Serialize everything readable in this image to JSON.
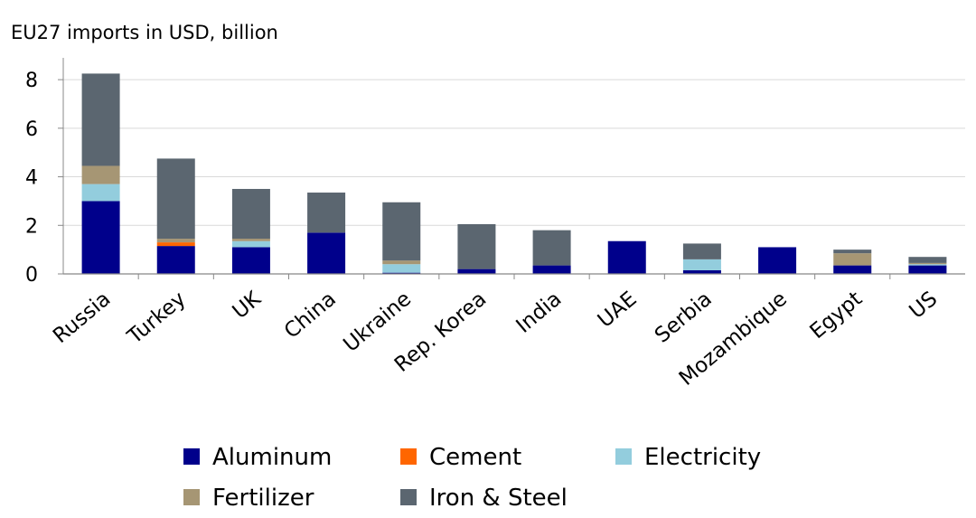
{
  "chart_data": {
    "type": "bar",
    "stacked": true,
    "ylabel": "EU27 imports in USD, billion",
    "ylim": [
      0,
      8.6
    ],
    "yticks": [
      0,
      2,
      4,
      6,
      8
    ],
    "grid": true,
    "legend_position": "bottom",
    "categories": [
      "Russia",
      "Turkey",
      "UK",
      "China",
      "Ukraine",
      "Rep. Korea",
      "India",
      "UAE",
      "Serbia",
      "Mozambique",
      "Egypt",
      "US"
    ],
    "series": [
      {
        "name": "Aluminum",
        "color": "#00008B",
        "values": [
          3.0,
          1.15,
          1.1,
          1.7,
          0.05,
          0.2,
          0.35,
          1.35,
          0.15,
          1.1,
          0.35,
          0.35
        ]
      },
      {
        "name": "Cement",
        "color": "#FF6600",
        "values": [
          0.0,
          0.15,
          0.0,
          0.0,
          0.0,
          0.0,
          0.0,
          0.0,
          0.0,
          0.0,
          0.0,
          0.0
        ]
      },
      {
        "name": "Electricity",
        "color": "#93CDDD",
        "values": [
          0.7,
          0.0,
          0.25,
          0.0,
          0.35,
          0.0,
          0.0,
          0.0,
          0.45,
          0.0,
          0.0,
          0.05
        ]
      },
      {
        "name": "Fertilizer",
        "color": "#A69674",
        "values": [
          0.75,
          0.15,
          0.1,
          0.0,
          0.15,
          0.0,
          0.0,
          0.0,
          0.0,
          0.0,
          0.5,
          0.05
        ]
      },
      {
        "name": "Iron & Steel",
        "color": "#5B6670",
        "values": [
          3.8,
          3.3,
          2.05,
          1.65,
          2.4,
          1.85,
          1.45,
          0.0,
          0.65,
          0.0,
          0.15,
          0.25
        ]
      }
    ]
  }
}
